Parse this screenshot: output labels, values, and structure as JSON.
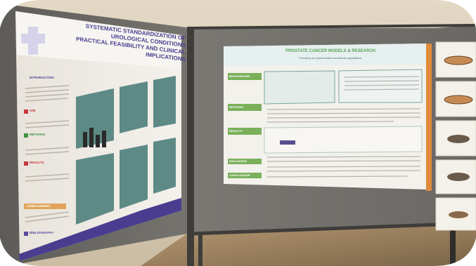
{
  "left_poster": {
    "title_line1": "SYSTEMATIC STANDARDIZATION OF UROLOGICAL CONDITIONS",
    "title_line2": "PRACTICAL FEASIBILITY AND CLINICAL IMPLICATIONS",
    "section_labels": [
      "INTRODUCTION",
      "AIM",
      "METHODS",
      "RESULTS",
      "CONCLUSIONS",
      "BIBLIOGRAPHY"
    ],
    "accent_colors": [
      "#c8373c",
      "#3f8f3f",
      "#d49a2a",
      "#5a4a9a"
    ]
  },
  "right_poster": {
    "title": "PROSTATE CANCER MODELS & RESEARCH",
    "subtitle": "Focusing on experimental and clinical applications",
    "green_labels": [
      "BACKGROUND",
      "METHODS",
      "RESULTS",
      "DISCUSSION",
      "CONCLUSIONS"
    ]
  },
  "colors": {
    "board_gray": "#6e6c68",
    "frame_gray": "#4e4c48",
    "wall": "#d9cdb8",
    "floor": "#a08866",
    "poster_paper": "#f2efe9",
    "teal_panel": "#5c8a85",
    "green_label": "#7ab05a"
  }
}
